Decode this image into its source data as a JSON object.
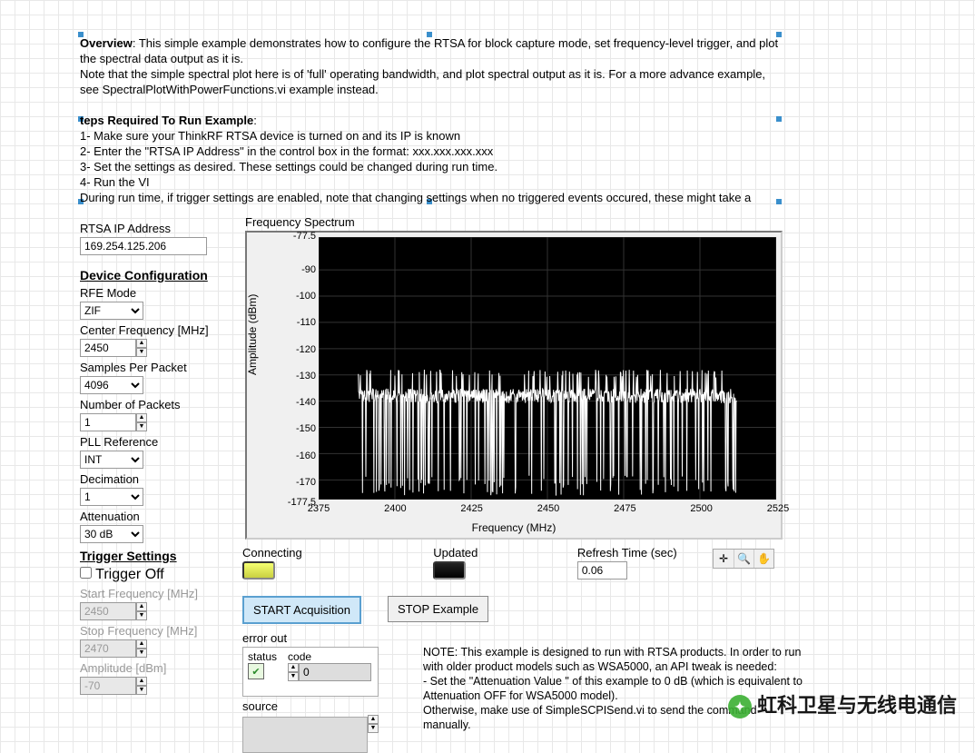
{
  "overview": {
    "heading": "Overview",
    "line1": ": This simple example demonstrates how to configure the RTSA for block capture mode, set frequency-level trigger, and plot the spectral data output as it is.",
    "line2": "Note that the simple spectral plot here is of 'full' operating bandwidth, and plot spectral output as it is.  For a more advance example, see SpectralPlotWithPowerFunctions.vi example instead."
  },
  "steps": {
    "heading": "teps Required To Run Example",
    "s1": "1- Make sure your ThinkRF RTSA device is turned on and its IP is known",
    "s2": "2- Enter the \"RTSA IP Address\" in the control box in the format: xxx.xxx.xxx.xxx",
    "s3": "3- Set the settings as desired.  These settings could be changed during run time.",
    "s4": "4- Run the VI",
    "s5": "During run time, if trigger settings are enabled, note that changing settings when no triggered events occured, these might take a"
  },
  "ip": {
    "label": "RTSA IP Address",
    "value": "169.254.125.206"
  },
  "devcfg": {
    "header": "Device Configuration",
    "rfe_mode": {
      "label": "RFE Mode",
      "value": "ZIF"
    },
    "center_freq": {
      "label": "Center Frequency [MHz]",
      "value": "2450"
    },
    "spp": {
      "label": "Samples Per Packet",
      "value": "4096"
    },
    "npkt": {
      "label": "Number of Packets",
      "value": "1"
    },
    "pll": {
      "label": "PLL Reference",
      "value": "INT"
    },
    "dec": {
      "label": "Decimation",
      "value": "1"
    },
    "atten": {
      "label": "Attenuation",
      "value": "30 dB"
    }
  },
  "trig": {
    "header": "Trigger Settings",
    "off": "Trigger Off",
    "startf": {
      "label": "Start Frequency [MHz]",
      "value": "2450"
    },
    "stopf": {
      "label": "Stop Frequency [MHz]",
      "value": "2470"
    },
    "amp": {
      "label": "Amplitude [dBm]",
      "value": "-70"
    }
  },
  "chart": {
    "title": "Frequency Spectrum",
    "ylabel": "Amplitude (dBm)",
    "xlabel": "Frequency (MHz)",
    "xlim": [
      2375,
      2525
    ],
    "ylim": [
      -177.5,
      -77.5
    ],
    "yticks": [
      -77.5,
      -90,
      -100,
      -110,
      -120,
      -130,
      -140,
      -150,
      -160,
      -170,
      -177.5
    ],
    "xticks": [
      2375,
      2400,
      2425,
      2450,
      2475,
      2500,
      2525
    ],
    "trace_color": "#ffffff",
    "bg": "#000000",
    "grid_color": "#333333",
    "data_xrange": [
      2388,
      2512
    ],
    "noise_mean": -138,
    "noise_lo": -176,
    "noise_hi": -128
  },
  "status": {
    "connecting": "Connecting",
    "updated": "Updated",
    "refresh_label": "Refresh Time (sec)",
    "refresh_value": "0.06"
  },
  "buttons": {
    "start": "START Acquisition",
    "stop": "STOP Example"
  },
  "err": {
    "label": "error out",
    "status": "status",
    "code_label": "code",
    "code": "0",
    "source": "source"
  },
  "note": {
    "l1": "NOTE:  This example is designed to run with RTSA products.  In order to run with older product models such as WSA5000, an API tweak is needed:",
    "l2": "- Set the  \"Attenuation Value \" of this example to 0 dB (which is equivalent to Attenuation OFF for WSA5000 model).",
    "l3": "Otherwise, make use of SimpleSCPISend.vi to send the command manually."
  },
  "watermark": "虹科卫星与无线电通信",
  "markers": {
    "color": "#3a8fcc"
  }
}
